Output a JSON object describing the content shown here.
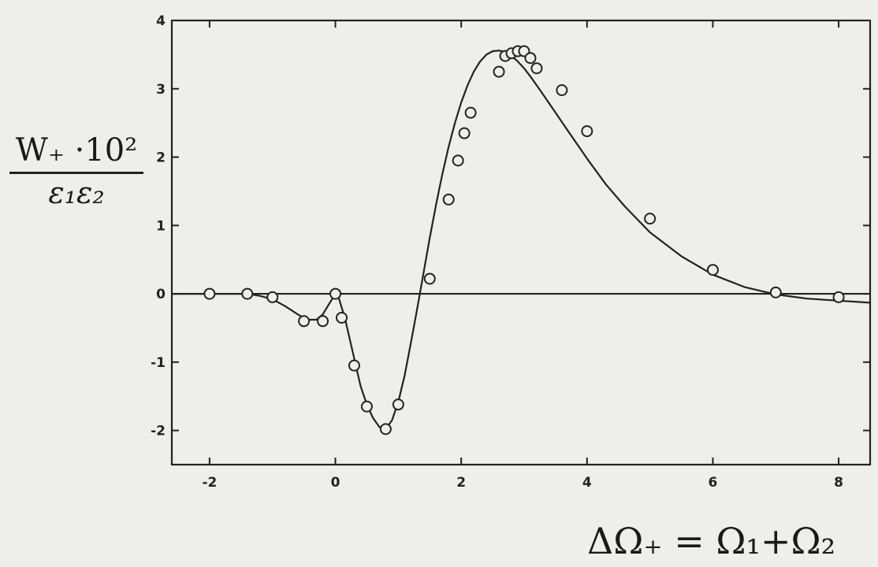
{
  "chart_data": {
    "type": "line",
    "title": "",
    "ylabel_numerator": "W₊ ·10²",
    "ylabel_denominator": "ε₁ε₂",
    "xlabel": "ΔΩ₊ = Ω₁+Ω₂",
    "xlim": [
      -2.6,
      8.5
    ],
    "ylim": [
      -2.5,
      4.0
    ],
    "x_ticks": [
      -2,
      0,
      2,
      4,
      6,
      8
    ],
    "y_ticks": [
      4,
      3,
      2,
      1,
      0,
      -1,
      -2
    ],
    "x_tick_labels": [
      "-2",
      "0",
      "2",
      "4",
      "6",
      "8"
    ],
    "y_tick_labels": [
      "4",
      "3",
      "2",
      "1",
      "0",
      "-1",
      "-2"
    ],
    "grid": false,
    "reference_line_y": 0,
    "series": [
      {
        "role": "curve",
        "style": "solid line",
        "x": [
          -2.6,
          -2.0,
          -1.4,
          -1.2,
          -1.0,
          -0.8,
          -0.6,
          -0.45,
          -0.3,
          -0.2,
          -0.1,
          0.0,
          0.05,
          0.1,
          0.15,
          0.2,
          0.3,
          0.4,
          0.5,
          0.6,
          0.7,
          0.8,
          0.9,
          1.0,
          1.1,
          1.2,
          1.3,
          1.4,
          1.5,
          1.6,
          1.7,
          1.8,
          1.9,
          2.0,
          2.1,
          2.2,
          2.3,
          2.4,
          2.5,
          2.6,
          2.7,
          2.8,
          2.9,
          3.0,
          3.1,
          3.2,
          3.3,
          3.5,
          3.7,
          4.0,
          4.3,
          4.6,
          5.0,
          5.5,
          6.0,
          6.5,
          7.0,
          7.5,
          8.0,
          8.5
        ],
        "y": [
          0.0,
          0.0,
          0.0,
          -0.03,
          -0.08,
          -0.18,
          -0.3,
          -0.38,
          -0.38,
          -0.3,
          -0.15,
          0.0,
          -0.05,
          -0.2,
          -0.35,
          -0.55,
          -0.95,
          -1.35,
          -1.62,
          -1.82,
          -1.95,
          -1.98,
          -1.85,
          -1.58,
          -1.2,
          -0.72,
          -0.22,
          0.3,
          0.82,
          1.3,
          1.75,
          2.15,
          2.5,
          2.8,
          3.05,
          3.25,
          3.4,
          3.5,
          3.55,
          3.56,
          3.54,
          3.48,
          3.4,
          3.3,
          3.18,
          3.05,
          2.92,
          2.65,
          2.38,
          1.98,
          1.6,
          1.28,
          0.9,
          0.55,
          0.28,
          0.1,
          -0.01,
          -0.07,
          -0.1,
          -0.13
        ]
      },
      {
        "role": "points",
        "style": "open circles",
        "x": [
          -2.0,
          -1.4,
          -1.0,
          -0.5,
          -0.2,
          0.0,
          0.1,
          0.3,
          0.5,
          0.8,
          1.0,
          1.5,
          1.8,
          1.95,
          2.05,
          2.15,
          2.6,
          2.7,
          2.8,
          2.9,
          3.0,
          3.1,
          3.2,
          3.6,
          4.0,
          5.0,
          6.0,
          7.0,
          8.0
        ],
        "y": [
          0.0,
          0.0,
          -0.05,
          -0.4,
          -0.4,
          0.0,
          -0.35,
          -1.05,
          -1.65,
          -1.98,
          -1.62,
          0.22,
          1.38,
          1.95,
          2.35,
          2.65,
          3.25,
          3.48,
          3.52,
          3.55,
          3.55,
          3.45,
          3.3,
          2.98,
          2.38,
          1.1,
          0.35,
          0.02,
          -0.05
        ]
      }
    ]
  }
}
